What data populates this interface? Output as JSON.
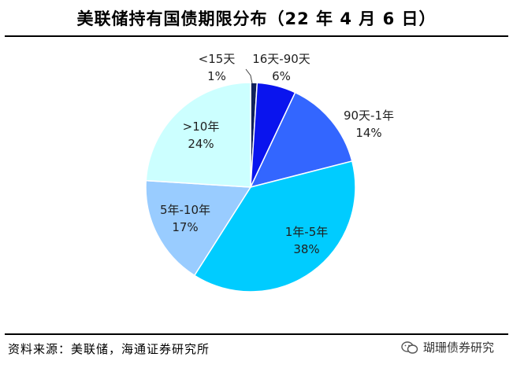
{
  "header": {
    "title": "美联储持有国债期限分布（22 年 4 月 6 日）"
  },
  "footer": {
    "source": "资料来源：美联储，海通证券研究所",
    "watermark": "瑚珊债券研究"
  },
  "chart_data": {
    "type": "pie",
    "title": "美联储持有国债期限分布（22 年 4 月 6 日）",
    "slices": [
      {
        "label": "<15天",
        "value": 1,
        "value_text": "1%",
        "color": "#10205a"
      },
      {
        "label": "16天-90天",
        "value": 6,
        "value_text": "6%",
        "color": "#0a14ee"
      },
      {
        "label": "90天-1年",
        "value": 14,
        "value_text": "14%",
        "color": "#3366ff"
      },
      {
        "label": "1年-5年",
        "value": 38,
        "value_text": "38%",
        "color": "#00ccff"
      },
      {
        "label": "5年-10年",
        "value": 17,
        "value_text": "17%",
        "color": "#99ccff"
      },
      {
        "label": ">10年",
        "value": 24,
        "value_text": "24%",
        "color": "#ccffff"
      }
    ],
    "legend": "none"
  }
}
